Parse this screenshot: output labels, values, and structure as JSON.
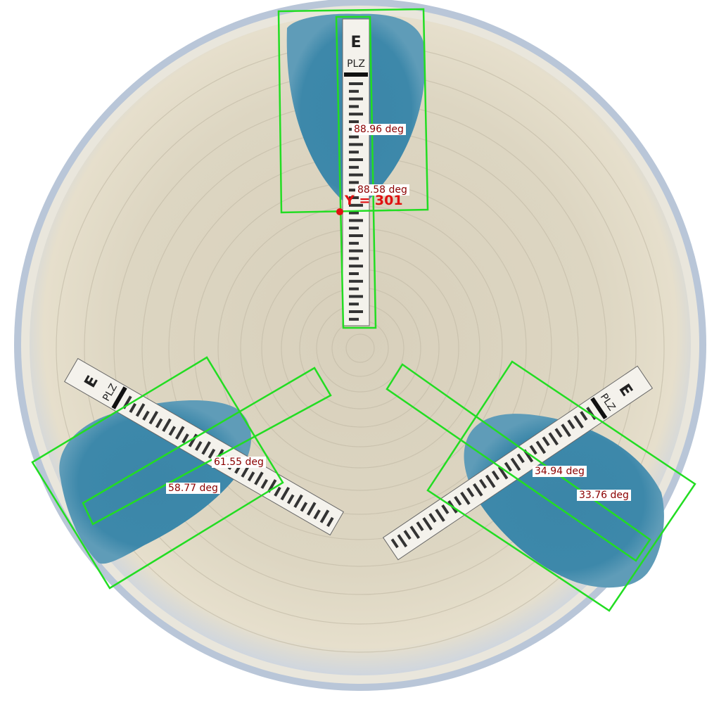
{
  "image": {
    "subject": "",
    "strip_code": "PLZ",
    "strip_logo_letter": "E",
    "colors": {
      "background": "#ffffff",
      "agar": "#ded7c3",
      "inhibition_zone": "#3a86a8",
      "bounding_box": "#22dd22",
      "label_text": "#8b0000",
      "marker": "#e01010"
    }
  },
  "measurements": {
    "top_outer_angle": "88.96 deg",
    "top_inner_angle": "88.58 deg",
    "y_readout": "Y = 301",
    "left_inner_angle": "61.55 deg",
    "left_outer_angle": "58.77 deg",
    "right_inner_angle": "34.94 deg",
    "right_outer_angle": "33.76 deg"
  }
}
